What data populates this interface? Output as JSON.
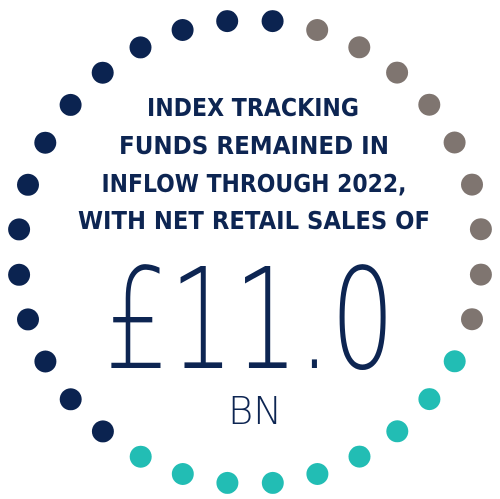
{
  "headline": [
    "INDEX TRACKING",
    "FUNDS REMAINED IN",
    "INFLOW THROUGH 2022,",
    "WITH NET RETAIL SALES OF"
  ],
  "figure": "£11.0",
  "unit": "BN"
}
